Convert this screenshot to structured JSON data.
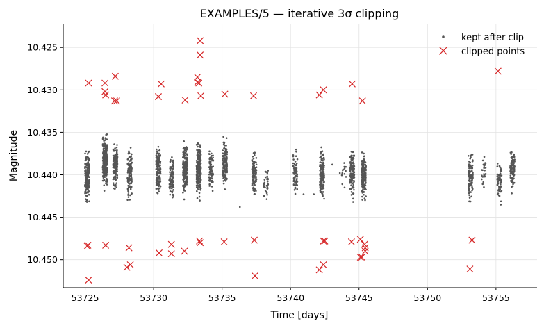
{
  "chart_data": {
    "type": "scatter",
    "title": "EXAMPLES/5 — iterative 3σ clipping",
    "xlabel": "Time [days]",
    "ylabel": "Magnitude",
    "xlim": [
      53723.4,
      53758.0
    ],
    "ylim": [
      10.4533,
      10.4222
    ],
    "y_inverted": true,
    "grid": true,
    "legend_position": "top-right",
    "x_ticks": [
      53725,
      53730,
      53735,
      53740,
      53745,
      53750,
      53755
    ],
    "x_tick_labels": [
      "53725",
      "53730",
      "53735",
      "53740",
      "53745",
      "53750",
      "53755"
    ],
    "y_ticks": [
      10.425,
      10.43,
      10.435,
      10.44,
      10.445,
      10.45
    ],
    "y_tick_labels": [
      "10.425",
      "10.430",
      "10.435",
      "10.440",
      "10.445",
      "10.450"
    ],
    "series": [
      {
        "name": "kept after clip",
        "marker": "dot",
        "color": "#555555",
        "clusters": [
          {
            "x": 53725.15,
            "center": 10.4402,
            "spread": 0.0028,
            "n": 170
          },
          {
            "x": 53726.45,
            "center": 10.4385,
            "spread": 0.0028,
            "n": 260
          },
          {
            "x": 53727.2,
            "center": 10.4388,
            "spread": 0.0025,
            "n": 160
          },
          {
            "x": 53728.25,
            "center": 10.4398,
            "spread": 0.0028,
            "n": 130
          },
          {
            "x": 53730.35,
            "center": 10.4395,
            "spread": 0.0026,
            "n": 150
          },
          {
            "x": 53731.3,
            "center": 10.4405,
            "spread": 0.0028,
            "n": 90
          },
          {
            "x": 53732.3,
            "center": 10.4393,
            "spread": 0.0027,
            "n": 230
          },
          {
            "x": 53733.3,
            "center": 10.4395,
            "spread": 0.0028,
            "n": 230
          },
          {
            "x": 53734.2,
            "center": 10.4392,
            "spread": 0.0024,
            "n": 90
          },
          {
            "x": 53735.2,
            "center": 10.4385,
            "spread": 0.0025,
            "n": 150
          },
          {
            "x": 53737.35,
            "center": 10.44,
            "spread": 0.0025,
            "n": 110
          },
          {
            "x": 53738.2,
            "center": 10.4412,
            "spread": 0.0022,
            "n": 35
          },
          {
            "x": 53740.35,
            "center": 10.4398,
            "spread": 0.0024,
            "n": 80
          },
          {
            "x": 53742.3,
            "center": 10.44,
            "spread": 0.0027,
            "n": 180
          },
          {
            "x": 53743.9,
            "center": 10.4395,
            "spread": 0.0016,
            "n": 14
          },
          {
            "x": 53744.5,
            "center": 10.4398,
            "spread": 0.0026,
            "n": 150
          },
          {
            "x": 53745.35,
            "center": 10.4402,
            "spread": 0.0027,
            "n": 190
          },
          {
            "x": 53753.15,
            "center": 10.4402,
            "spread": 0.0026,
            "n": 110
          },
          {
            "x": 53754.1,
            "center": 10.4395,
            "spread": 0.002,
            "n": 25
          },
          {
            "x": 53755.25,
            "center": 10.4408,
            "spread": 0.0022,
            "n": 60
          },
          {
            "x": 53756.2,
            "center": 10.4392,
            "spread": 0.0022,
            "n": 90
          }
        ],
        "isolated": [
          {
            "x": 53736.3,
            "y": 10.4438
          },
          {
            "x": 53740.95,
            "y": 10.4423
          },
          {
            "x": 53741.7,
            "y": 10.4423
          },
          {
            "x": 53743.6,
            "y": 10.4398
          },
          {
            "x": 53743.05,
            "y": 10.4388
          }
        ]
      },
      {
        "name": "clipped points",
        "marker": "x",
        "color": "#d62728",
        "points": [
          [
            53725.25,
            10.4292
          ],
          [
            53725.15,
            10.4484
          ],
          [
            53725.2,
            10.4483
          ],
          [
            53725.25,
            10.4524
          ],
          [
            53726.45,
            10.4292
          ],
          [
            53726.45,
            10.4302
          ],
          [
            53726.5,
            10.4306
          ],
          [
            53726.5,
            10.4483
          ],
          [
            53727.2,
            10.4284
          ],
          [
            53727.15,
            10.4313
          ],
          [
            53727.3,
            10.4313
          ],
          [
            53728.2,
            10.4486
          ],
          [
            53728.05,
            10.4509
          ],
          [
            53728.3,
            10.4506
          ],
          [
            53730.35,
            10.4308
          ],
          [
            53730.55,
            10.4293
          ],
          [
            53730.4,
            10.4492
          ],
          [
            53731.3,
            10.4482
          ],
          [
            53731.3,
            10.4493
          ],
          [
            53732.3,
            10.4312
          ],
          [
            53732.25,
            10.449
          ],
          [
            53733.2,
            10.4285
          ],
          [
            53733.2,
            10.4291
          ],
          [
            53733.3,
            10.4292
          ],
          [
            53733.4,
            10.4242
          ],
          [
            53733.4,
            10.4259
          ],
          [
            53733.45,
            10.4307
          ],
          [
            53733.35,
            10.4478
          ],
          [
            53733.4,
            10.448
          ],
          [
            53735.2,
            10.4305
          ],
          [
            53735.15,
            10.4479
          ],
          [
            53737.3,
            10.4307
          ],
          [
            53737.35,
            10.4477
          ],
          [
            53737.4,
            10.4519
          ],
          [
            53742.1,
            10.4306
          ],
          [
            53742.4,
            10.43
          ],
          [
            53742.4,
            10.4478
          ],
          [
            53742.5,
            10.4478
          ],
          [
            53742.1,
            10.4512
          ],
          [
            53742.4,
            10.4506
          ],
          [
            53744.5,
            10.4293
          ],
          [
            53744.45,
            10.4479
          ],
          [
            53745.25,
            10.4313
          ],
          [
            53745.1,
            10.4476
          ],
          [
            53745.4,
            10.4482
          ],
          [
            53745.45,
            10.4486
          ],
          [
            53745.45,
            10.449
          ],
          [
            53745.1,
            10.4497
          ],
          [
            53745.2,
            10.4497
          ],
          [
            53753.25,
            10.4477
          ],
          [
            53753.1,
            10.4511
          ],
          [
            53755.15,
            10.4278
          ]
        ]
      }
    ]
  }
}
